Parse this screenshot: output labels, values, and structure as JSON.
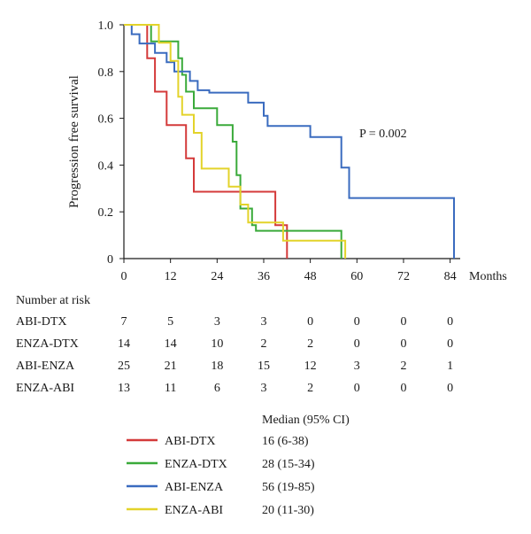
{
  "chart_data": {
    "type": "line",
    "subtype": "kaplan-meier step",
    "ylabel": "Progression free survival",
    "xlabel": "Months",
    "xlim": [
      0,
      85
    ],
    "ylim": [
      0,
      1.0
    ],
    "x_ticks": [
      0,
      12,
      24,
      36,
      48,
      60,
      72,
      84
    ],
    "y_ticks": [
      "0",
      "0.2",
      "0.4",
      "0.6",
      "0.8",
      "1.0"
    ],
    "y_tick_values": [
      0,
      0.2,
      0.4,
      0.6,
      0.8,
      1.0
    ],
    "annotation": "P = 0.002",
    "grid": false,
    "series": [
      {
        "name": "ABI-DTX",
        "color": "#d43a3a",
        "median": "16 (6-38)",
        "steps": [
          [
            0,
            1.0
          ],
          [
            6,
            0.857
          ],
          [
            8,
            0.714
          ],
          [
            11,
            0.571
          ],
          [
            16,
            0.429
          ],
          [
            18,
            0.286
          ],
          [
            39,
            0.143
          ],
          [
            42,
            0.0
          ]
        ]
      },
      {
        "name": "ENZA-DTX",
        "color": "#3aaa3a",
        "median": "28 (15-34)",
        "steps": [
          [
            0,
            1.0
          ],
          [
            7,
            0.929
          ],
          [
            14,
            0.857
          ],
          [
            15,
            0.786
          ],
          [
            16,
            0.714
          ],
          [
            18,
            0.643
          ],
          [
            24,
            0.571
          ],
          [
            28,
            0.5
          ],
          [
            29,
            0.357
          ],
          [
            30,
            0.214
          ],
          [
            33,
            0.143
          ],
          [
            34,
            0.119
          ],
          [
            56,
            0.0
          ]
        ]
      },
      {
        "name": "ABI-ENZA",
        "color": "#3a6bbf",
        "median": "56 (19-85)",
        "steps": [
          [
            0,
            1.0
          ],
          [
            2,
            0.96
          ],
          [
            4,
            0.92
          ],
          [
            8,
            0.88
          ],
          [
            11,
            0.84
          ],
          [
            13,
            0.8
          ],
          [
            17,
            0.76
          ],
          [
            19,
            0.72
          ],
          [
            22,
            0.71
          ],
          [
            32,
            0.667
          ],
          [
            36,
            0.611
          ],
          [
            37,
            0.567
          ],
          [
            48,
            0.52
          ],
          [
            56,
            0.389
          ],
          [
            58,
            0.259
          ],
          [
            85,
            0.0
          ]
        ]
      },
      {
        "name": "ENZA-ABI",
        "color": "#e3d32a",
        "median": "20 (11-30)",
        "steps": [
          [
            0,
            1.0
          ],
          [
            9,
            0.923
          ],
          [
            12,
            0.846
          ],
          [
            14,
            0.692
          ],
          [
            15,
            0.615
          ],
          [
            18,
            0.538
          ],
          [
            20,
            0.385
          ],
          [
            23,
            0.385
          ],
          [
            27,
            0.308
          ],
          [
            30,
            0.231
          ],
          [
            32,
            0.154
          ],
          [
            41,
            0.077
          ],
          [
            57,
            0.0
          ]
        ]
      }
    ]
  },
  "risk_table": {
    "title": "Number at risk",
    "rows": [
      {
        "label": "ABI-DTX",
        "values": [
          "7",
          "5",
          "3",
          "3",
          "0",
          "0",
          "0",
          "0"
        ]
      },
      {
        "label": "ENZA-DTX",
        "values": [
          "14",
          "14",
          "10",
          "2",
          "2",
          "0",
          "0",
          "0"
        ]
      },
      {
        "label": "ABI-ENZA",
        "values": [
          "25",
          "21",
          "18",
          "15",
          "12",
          "3",
          "2",
          "1"
        ]
      },
      {
        "label": "ENZA-ABI",
        "values": [
          "13",
          "11",
          "6",
          "3",
          "2",
          "0",
          "0",
          "0"
        ]
      }
    ]
  },
  "legend": {
    "header": "Median (95% CI)"
  }
}
